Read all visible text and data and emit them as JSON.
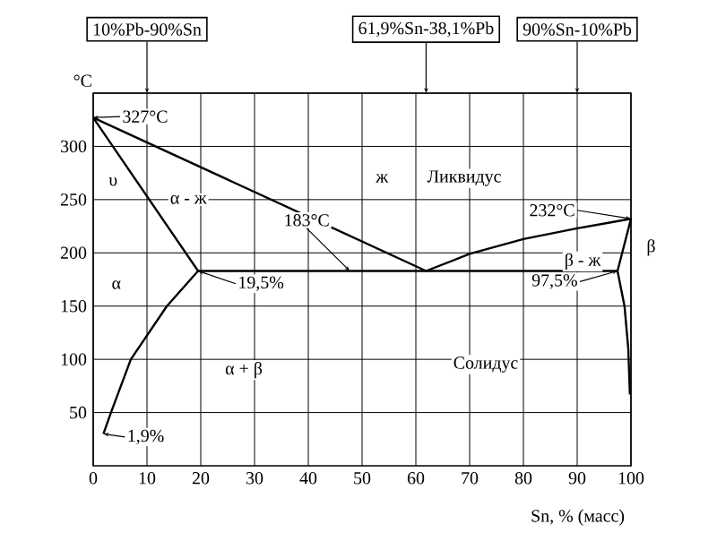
{
  "chart_data": {
    "type": "line",
    "xlabel": "Sn, % (масс)",
    "ylabel": "°C",
    "xlim": [
      0,
      100
    ],
    "ylim": [
      0,
      350
    ],
    "xticks": [
      0,
      10,
      20,
      30,
      40,
      50,
      60,
      70,
      80,
      90,
      100
    ],
    "yticks": [
      50,
      100,
      150,
      200,
      250,
      300
    ],
    "grid": true,
    "series": [
      {
        "color": "#000000",
        "x": [
          0,
          61.9,
          70,
          80,
          90,
          100
        ],
        "values": [
          327,
          183,
          199,
          213,
          223,
          232
        ]
      },
      {
        "color": "#000000",
        "x": [
          1.9,
          3.3,
          7,
          13.7,
          19.5,
          0
        ],
        "values": [
          30,
          50,
          100,
          150,
          183,
          327
        ]
      },
      {
        "color": "#000000",
        "x": [
          19.5,
          97.5
        ],
        "values": [
          183,
          183
        ]
      },
      {
        "color": "#000000",
        "x": [
          100,
          97.5,
          98.8,
          99.5,
          99.8
        ],
        "values": [
          232,
          183,
          150,
          110,
          67
        ]
      }
    ],
    "annotations": [
      {
        "text": "10%Pb-90%Sn",
        "x": 10,
        "y": 350
      },
      {
        "text": "61,9%Sn-38,1%Pb",
        "x": 61.9,
        "y": 350
      },
      {
        "text": "90%Sn-10%Pb",
        "x": 90,
        "y": 350
      },
      {
        "text": "327°C",
        "x": 0,
        "y": 327
      },
      {
        "text": "183°C",
        "x": 47.7,
        "y": 183
      },
      {
        "text": "232°C",
        "x": 100,
        "y": 232
      },
      {
        "text": "19,5%",
        "x": 19.5,
        "y": 183
      },
      {
        "text": "97,5%",
        "x": 97.5,
        "y": 183
      },
      {
        "text": "1,9%",
        "x": 1.9,
        "y": 30
      },
      "υ",
      "α - ж",
      "ж",
      "Ликвидус",
      "α",
      "β - ж",
      "β",
      "α + β",
      "Солидус"
    ]
  }
}
